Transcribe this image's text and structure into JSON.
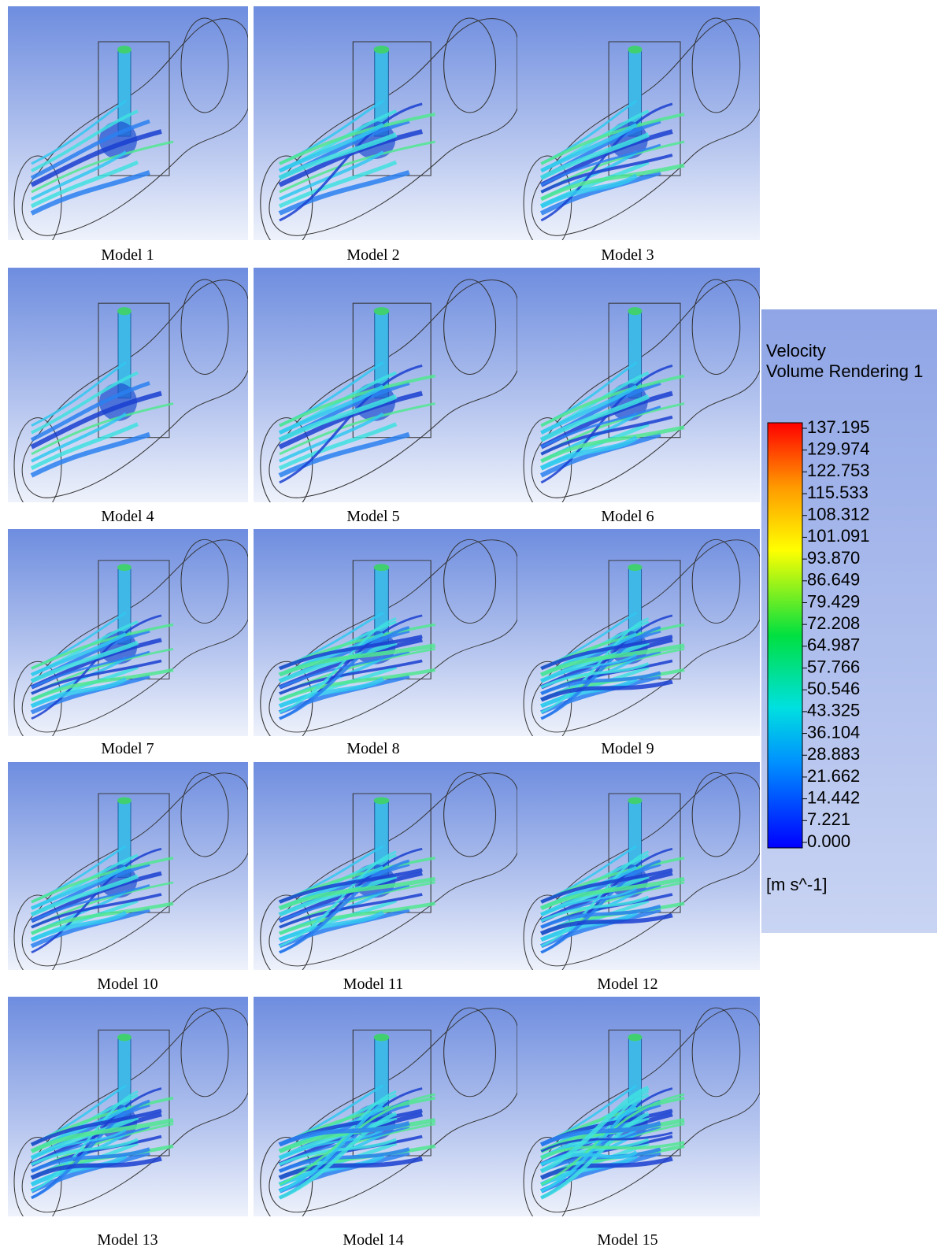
{
  "panels": [
    {
      "caption": "Model 1"
    },
    {
      "caption": "Model 2"
    },
    {
      "caption": "Model 3"
    },
    {
      "caption": "Model 4"
    },
    {
      "caption": "Model 5"
    },
    {
      "caption": "Model 6"
    },
    {
      "caption": "Model 7"
    },
    {
      "caption": "Model 8"
    },
    {
      "caption": "Model 9"
    },
    {
      "caption": "Model 10"
    },
    {
      "caption": "Model 11"
    },
    {
      "caption": "Model 12"
    },
    {
      "caption": "Model 13"
    },
    {
      "caption": "Model 14"
    },
    {
      "caption": "Model 15"
    }
  ],
  "legend": {
    "title": "Velocity",
    "subtitle": "Volume Rendering 1",
    "ticks": [
      137.195,
      129.974,
      122.753,
      115.533,
      108.312,
      101.091,
      {
        "value": 93.87,
        "label": "93.870"
      },
      86.649,
      79.429,
      72.208,
      64.987,
      57.766,
      50.546,
      43.325,
      36.104,
      28.883,
      21.662,
      14.442,
      7.221,
      {
        "value": 0,
        "label": "0.000"
      }
    ],
    "unit": "[m s^-1]"
  }
}
